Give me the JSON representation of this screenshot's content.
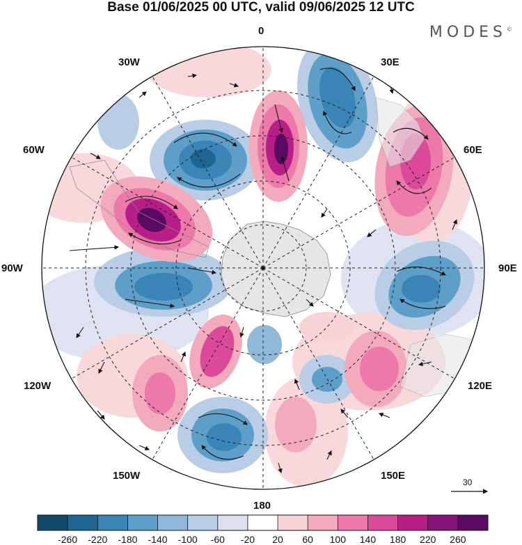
{
  "title": "Base 01/06/2025 00 UTC, valid 09/06/2025 12 UTC",
  "brand": "MODES",
  "brand_mark": "©",
  "longitude_labels": {
    "lon_0": "0",
    "lon_30e": "30E",
    "lon_60e": "60E",
    "lon_90e": "90E",
    "lon_120e": "120E",
    "lon_150e": "150E",
    "lon_180": "180",
    "lon_150w": "150W",
    "lon_120w": "120W",
    "lon_90w": "90W",
    "lon_60w": "60W",
    "lon_30w": "30W"
  },
  "reference_vector_label": "30",
  "colorbar": {
    "labels": [
      "-260",
      "-220",
      "-180",
      "-140",
      "-100",
      "-60",
      "-20",
      "20",
      "60",
      "100",
      "140",
      "180",
      "220",
      "260"
    ],
    "colors": [
      "#12496b",
      "#1f6591",
      "#3a85b6",
      "#5e9fca",
      "#8fb8d9",
      "#b9cde6",
      "#dcdff0",
      "#ffffff",
      "#f8d4d8",
      "#f4aabd",
      "#ec79a9",
      "#db4a99",
      "#b81e88",
      "#861478",
      "#5a0a62"
    ]
  },
  "contour_colors": {
    "neg_strong": "#1f6591",
    "neg_mid": "#5e9fca",
    "neg_weak": "#b9cde6",
    "pos_strong": "#861478",
    "pos_mid": "#db4a99",
    "pos_weak": "#f4aabd",
    "land": "#e6e6e6"
  }
}
